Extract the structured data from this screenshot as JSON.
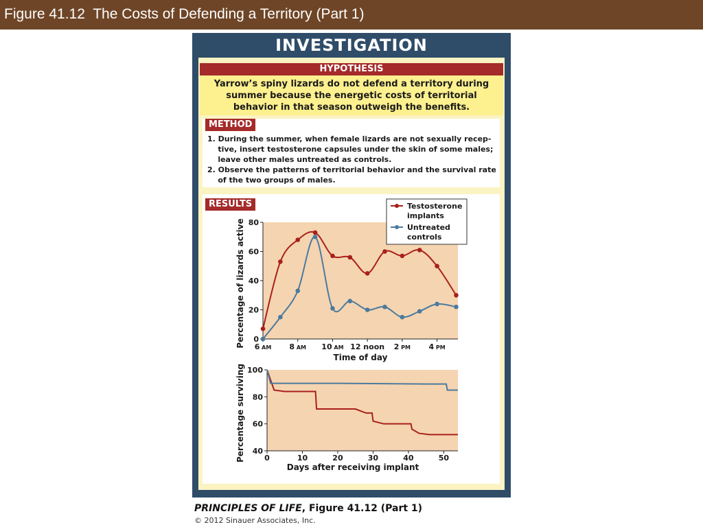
{
  "slide": {
    "title": "Figure 41.12  The Costs of Defending a Territory (Part 1)"
  },
  "panel": {
    "label": "INVESTIGATION",
    "hypothesis": {
      "tag": "HYPOTHESIS",
      "lines": [
        "Yarrow’s spiny lizards do not defend a territory during",
        "summer because the energetic costs of territorial",
        "behavior in that season outweigh the benefits."
      ]
    },
    "method": {
      "tag": "METHOD",
      "lines": [
        "1. During the summer, when female lizards are not sexually recep-",
        "    tive, insert testosterone capsules under the skin of some males;",
        "    leave other males untreated as controls.",
        "2. Observe the patterns of territorial behavior and the survival rate",
        "    of the two groups of males."
      ]
    },
    "results": {
      "tag": "RESULTS"
    }
  },
  "colors": {
    "testosterone": "#a8201a",
    "controls": "#4b7a9e",
    "plot_bg": "#f5d4b1",
    "tag_bg": "#a52a2a",
    "panel_border": "#2f4c68",
    "title_bar": "#6e4526"
  },
  "chart_data": [
    {
      "type": "line",
      "xlabel": "Time of day",
      "ylabel": "Percentage of lizards active",
      "ylim": [
        0,
        80
      ],
      "yticks": [
        "0",
        "20",
        "40",
        "60",
        "80"
      ],
      "xtick_labels": [
        {
          "hour": 6,
          "num": "6",
          "suffix": "AM"
        },
        {
          "hour": 8,
          "num": "8",
          "suffix": "AM"
        },
        {
          "hour": 10,
          "num": "10",
          "suffix": "AM"
        },
        {
          "hour": 12,
          "num": "12 noon",
          "suffix": ""
        },
        {
          "hour": 14,
          "num": "2",
          "suffix": "PM"
        },
        {
          "hour": 16,
          "num": "4",
          "suffix": "PM"
        }
      ],
      "xlim": [
        6,
        17.2
      ],
      "grid": false,
      "legend": {
        "position": "top-right",
        "entries": [
          {
            "lines": [
              "Testosterone",
              "implants"
            ],
            "series": 0
          },
          {
            "lines": [
              "Untreated",
              "controls"
            ],
            "series": 1
          }
        ]
      },
      "series": [
        {
          "name": "Testosterone implants",
          "x": [
            6.0,
            7.0,
            8.0,
            9.0,
            10.0,
            11.0,
            12.0,
            13.0,
            14.0,
            15.0,
            16.0,
            17.1
          ],
          "y": [
            7,
            53,
            68,
            73,
            57,
            56,
            45,
            60,
            57,
            61,
            50,
            30
          ]
        },
        {
          "name": "Untreated controls",
          "x": [
            6.0,
            7.0,
            8.0,
            9.0,
            10.0,
            11.0,
            12.0,
            13.0,
            14.0,
            15.0,
            16.0,
            17.1
          ],
          "y": [
            0,
            15,
            33,
            70,
            21,
            26,
            20,
            22,
            15,
            19,
            24,
            22
          ]
        }
      ]
    },
    {
      "type": "line",
      "xlabel": "Days after receiving implant",
      "ylabel": "Percentage surviving",
      "xlim": [
        0,
        54
      ],
      "ylim": [
        40,
        100
      ],
      "xticks": [
        0,
        10,
        20,
        30,
        40,
        50
      ],
      "yticks": [
        40,
        60,
        80,
        100
      ],
      "grid": false,
      "series": [
        {
          "name": "Testosterone implants",
          "step": true,
          "x": [
            0,
            2,
            5,
            10,
            11,
            14,
            18,
            25,
            28,
            30,
            33,
            35,
            41,
            43,
            46,
            54
          ],
          "y": [
            100,
            85,
            84,
            84,
            84,
            71,
            71,
            71,
            68,
            62,
            60,
            60,
            56,
            53,
            52,
            52
          ]
        },
        {
          "name": "Untreated controls",
          "step": true,
          "x": [
            0,
            1,
            5,
            20,
            30,
            45,
            50,
            51,
            54
          ],
          "y": [
            100,
            90,
            90,
            90,
            89.8,
            89.5,
            89.5,
            85,
            85
          ]
        }
      ]
    }
  ],
  "footer": {
    "book": "PRINCIPLES OF LIFE",
    "figure": ", Figure 41.12 (Part 1)",
    "copyright": "© 2012 Sinauer Associates, Inc."
  }
}
